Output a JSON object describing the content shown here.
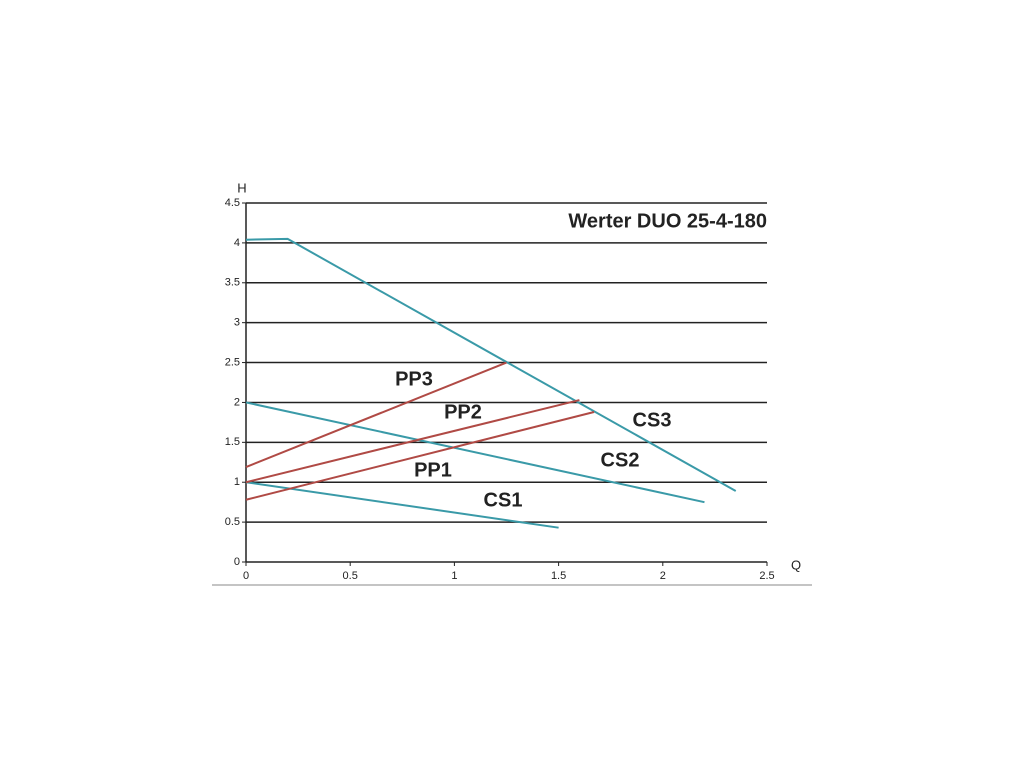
{
  "chart_data": {
    "type": "line",
    "title": "Werter DUO 25-4-180",
    "x_label": "Q",
    "y_label": "H",
    "xlim": [
      0,
      2.5
    ],
    "ylim": [
      0,
      4.5
    ],
    "xticks": [
      0,
      0.5,
      1,
      1.5,
      2,
      2.5
    ],
    "yticks": [
      0,
      0.5,
      1,
      1.5,
      2,
      2.5,
      3,
      3.5,
      4,
      4.5
    ],
    "grid": true,
    "series": [
      {
        "name": "CS3",
        "color": "#3a9aa8",
        "x": [
          0,
          0.2,
          2.35
        ],
        "values": [
          4.04,
          4.05,
          0.89
        ]
      },
      {
        "name": "CS2",
        "color": "#3a9aa8",
        "x": [
          0,
          2.2
        ],
        "values": [
          2.0,
          0.75
        ]
      },
      {
        "name": "CS1",
        "color": "#3a9aa8",
        "x": [
          0,
          1.5
        ],
        "values": [
          1.0,
          0.43
        ]
      },
      {
        "name": "PP3",
        "color": "#b04a45",
        "x": [
          0,
          1.25
        ],
        "values": [
          1.19,
          2.5
        ]
      },
      {
        "name": "PP2",
        "color": "#b04a45",
        "x": [
          0,
          1.6
        ],
        "values": [
          1.0,
          2.03
        ]
      },
      {
        "name": "PP1",
        "color": "#b04a45",
        "x": [
          0,
          1.67
        ],
        "values": [
          0.78,
          1.88
        ]
      }
    ]
  }
}
